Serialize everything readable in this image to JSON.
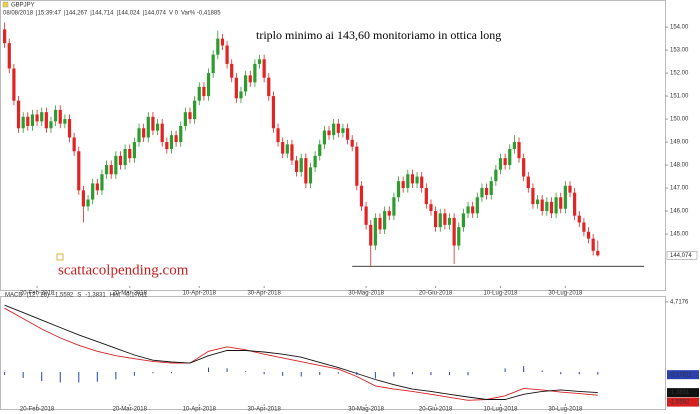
{
  "chart_data": [
    {
      "type": "candlestick",
      "symbol": "GBPJPY",
      "header_fields": [
        "08/08/2018",
        "|15:39:47",
        "|144,267",
        "|144,714",
        "|144,024",
        "|144,074",
        "V 0",
        "Var% -0,41885"
      ],
      "title": "triplo minimo ai 143,60 monitoriamo in ottica long",
      "watermark": "scattacolpending.com",
      "up_color": "#2e9b2e",
      "down_color": "#e02424",
      "open": [
        153.9,
        153.3,
        152.2,
        150.8,
        149.6,
        150.1,
        149.7,
        150.2,
        149.9,
        150.3,
        149.6,
        149.9,
        150.4,
        149.8,
        150.0,
        149.2,
        148.6,
        146.9,
        146.2,
        146.5,
        147.2,
        146.9,
        147.6,
        148.0,
        147.6,
        148.4,
        148.0,
        148.7,
        148.3,
        149.0,
        149.6,
        149.2,
        150.1,
        149.5,
        149.8,
        149.0,
        148.7,
        149.3,
        149.0,
        149.7,
        150.3,
        150.0,
        150.8,
        151.4,
        151.0,
        152.0,
        152.8,
        153.5,
        153.2,
        152.4,
        151.8,
        150.9,
        151.2,
        151.9,
        151.6,
        152.4,
        152.6,
        151.8,
        151.0,
        149.6,
        149.0,
        148.5,
        148.9,
        148.2,
        147.7,
        148.3,
        147.2,
        147.9,
        148.4,
        148.9,
        149.5,
        149.3,
        149.8,
        149.4,
        149.6,
        149.1,
        148.8,
        147.1,
        146.2,
        145.4,
        144.5,
        145.7,
        145.2,
        146.0,
        145.8,
        146.6,
        147.3,
        147.0,
        147.6,
        147.2,
        147.5,
        147.0,
        146.3,
        146.0,
        145.3,
        145.9,
        145.4,
        145.7,
        144.5,
        145.3,
        145.9,
        146.2,
        145.9,
        146.6,
        147.0,
        146.7,
        147.3,
        147.8,
        148.3,
        148.0,
        148.7,
        149.0,
        148.3,
        147.5,
        147.0,
        146.3,
        146.5,
        146.0,
        146.4,
        145.9,
        146.6,
        146.1,
        147.1,
        146.8,
        145.8,
        145.5,
        145.1,
        144.8,
        144.267
      ],
      "high": [
        154.2,
        153.5,
        152.4,
        151.0,
        150.3,
        150.3,
        150.4,
        150.4,
        150.5,
        150.5,
        150.1,
        150.6,
        150.6,
        150.2,
        150.2,
        149.4,
        148.8,
        147.1,
        146.7,
        147.4,
        147.4,
        147.8,
        148.2,
        148.2,
        148.6,
        148.6,
        148.9,
        148.9,
        149.2,
        149.8,
        149.8,
        150.3,
        150.3,
        150.0,
        150.0,
        149.2,
        149.5,
        149.5,
        149.9,
        150.5,
        150.5,
        151.0,
        151.6,
        151.6,
        152.2,
        153.0,
        153.85,
        153.7,
        153.4,
        152.6,
        152.0,
        151.4,
        152.1,
        152.1,
        152.6,
        152.8,
        152.8,
        152.0,
        151.2,
        149.8,
        149.2,
        149.1,
        149.1,
        148.4,
        148.5,
        148.5,
        148.1,
        148.6,
        149.1,
        149.7,
        149.7,
        150.0,
        150.0,
        149.8,
        149.8,
        149.3,
        149.0,
        147.3,
        146.4,
        145.6,
        145.9,
        145.9,
        146.2,
        146.2,
        146.8,
        147.5,
        147.5,
        147.8,
        147.8,
        147.7,
        147.7,
        147.2,
        146.5,
        146.2,
        146.1,
        146.1,
        145.9,
        145.9,
        145.5,
        146.1,
        146.4,
        146.4,
        146.8,
        147.2,
        147.2,
        147.5,
        148.0,
        148.5,
        148.5,
        148.9,
        149.3,
        149.2,
        148.5,
        147.7,
        147.2,
        146.7,
        146.7,
        146.6,
        146.6,
        146.8,
        146.8,
        147.3,
        147.3,
        147.0,
        146.0,
        145.7,
        145.3,
        145.0,
        144.714
      ],
      "low": [
        153.1,
        152.0,
        150.6,
        149.4,
        149.4,
        149.5,
        149.5,
        149.7,
        149.7,
        149.4,
        149.4,
        149.7,
        149.6,
        149.6,
        149.0,
        148.4,
        146.7,
        145.5,
        146.0,
        146.3,
        146.7,
        146.7,
        147.4,
        147.4,
        147.4,
        147.8,
        147.8,
        148.1,
        148.1,
        148.8,
        149.0,
        149.0,
        149.3,
        149.3,
        148.8,
        148.5,
        148.5,
        148.8,
        148.8,
        149.5,
        149.8,
        149.8,
        150.6,
        150.8,
        150.8,
        151.8,
        152.6,
        153.0,
        152.2,
        151.6,
        150.7,
        150.7,
        151.0,
        151.4,
        151.4,
        152.2,
        151.6,
        150.8,
        149.4,
        148.8,
        148.3,
        148.3,
        148.0,
        147.5,
        147.5,
        147.0,
        147.0,
        147.7,
        148.2,
        148.7,
        149.1,
        149.1,
        149.2,
        149.2,
        148.9,
        148.6,
        146.9,
        146.0,
        145.2,
        143.6,
        144.3,
        145.0,
        145.0,
        145.6,
        145.6,
        146.4,
        146.8,
        146.8,
        147.0,
        147.0,
        146.8,
        146.1,
        145.8,
        145.1,
        145.1,
        145.2,
        145.2,
        143.7,
        144.3,
        145.1,
        145.7,
        145.7,
        145.7,
        146.4,
        146.5,
        146.5,
        147.1,
        147.6,
        147.8,
        147.8,
        148.5,
        148.1,
        147.3,
        146.8,
        146.1,
        146.1,
        145.8,
        145.8,
        145.7,
        145.7,
        145.9,
        145.9,
        146.6,
        145.6,
        145.3,
        144.9,
        144.6,
        144.07,
        144.024
      ],
      "close": [
        153.3,
        152.2,
        150.8,
        149.6,
        150.1,
        149.7,
        150.2,
        149.9,
        150.3,
        149.6,
        149.9,
        150.4,
        149.8,
        150.0,
        149.2,
        148.6,
        146.9,
        146.2,
        146.5,
        147.2,
        146.9,
        147.6,
        148.0,
        147.6,
        148.4,
        148.0,
        148.7,
        148.3,
        149.0,
        149.6,
        149.2,
        150.1,
        149.5,
        149.8,
        149.0,
        148.7,
        149.3,
        149.0,
        149.7,
        150.3,
        150.0,
        150.8,
        151.4,
        151.0,
        152.0,
        152.8,
        153.5,
        153.2,
        152.4,
        151.8,
        150.9,
        151.2,
        151.9,
        151.6,
        152.4,
        152.6,
        151.8,
        151.0,
        149.6,
        149.0,
        148.5,
        148.9,
        148.2,
        147.7,
        148.3,
        147.2,
        147.9,
        148.4,
        148.9,
        149.5,
        149.3,
        149.8,
        149.4,
        149.6,
        149.1,
        148.8,
        147.1,
        146.2,
        145.4,
        144.5,
        145.7,
        145.2,
        146.0,
        145.8,
        146.6,
        147.3,
        147.0,
        147.6,
        147.2,
        147.5,
        147.0,
        146.3,
        146.0,
        145.3,
        145.9,
        145.4,
        145.7,
        144.5,
        145.3,
        145.9,
        146.2,
        145.9,
        146.6,
        147.0,
        146.7,
        147.3,
        147.8,
        148.3,
        148.0,
        148.7,
        149.0,
        148.3,
        147.5,
        147.0,
        146.3,
        146.5,
        146.0,
        146.4,
        145.9,
        146.6,
        146.1,
        147.1,
        146.8,
        145.8,
        145.5,
        145.1,
        144.8,
        144.27,
        144.074
      ],
      "xlim": [
        -1,
        142.5
      ],
      "xticks": [
        {
          "value": 7,
          "label": "20-Feb-2018"
        },
        {
          "value": 27,
          "label": "20-Mar-2018"
        },
        {
          "value": 42,
          "label": "10-Apr-2018"
        },
        {
          "value": 56,
          "label": "30-Apr-2018"
        },
        {
          "value": 78,
          "label": "30-Mag-2018"
        },
        {
          "value": 93,
          "label": "20-Giu-2018"
        },
        {
          "value": 107,
          "label": "10-Lug-2018"
        },
        {
          "value": 121,
          "label": "30-Lug-2018"
        }
      ],
      "ylim": [
        142.74,
        154.57
      ],
      "yticks": [
        {
          "value": 145,
          "label": "145.00"
        },
        {
          "value": 146,
          "label": "146.00"
        },
        {
          "value": 147,
          "label": "147.00"
        },
        {
          "value": 148,
          "label": "148.00"
        },
        {
          "value": 149,
          "label": "149.00"
        },
        {
          "value": 150,
          "label": "150.00"
        },
        {
          "value": 151,
          "label": "151.00"
        },
        {
          "value": 152,
          "label": "152.00"
        },
        {
          "value": 153,
          "label": "153.00"
        },
        {
          "value": 154,
          "label": "154.00"
        }
      ],
      "last_price": {
        "value": 144.074,
        "label": "144,074"
      },
      "hline": {
        "value": 143.6,
        "x_from": 75,
        "x_to": 138,
        "color": "#000000"
      }
    },
    {
      "type": "line",
      "indicator": "MACD",
      "params": "(12 , 26)",
      "x": [
        0,
        4,
        8,
        12,
        16,
        20,
        24,
        28,
        32,
        36,
        40,
        44,
        48,
        52,
        56,
        60,
        64,
        68,
        72,
        76,
        80,
        84,
        88,
        92,
        96,
        100,
        104,
        108,
        112,
        116,
        120,
        124,
        128
      ],
      "series": [
        {
          "name": "MACD",
          "color": "#d62020",
          "last_label": "-1,5592",
          "values": [
            4.3,
            3.6,
            2.9,
            2.3,
            1.8,
            1.4,
            1.1,
            0.9,
            0.72,
            0.6,
            0.6,
            1.4,
            1.7,
            1.5,
            1.2,
            0.95,
            0.7,
            0.45,
            0.2,
            -0.3,
            -0.93,
            -1.15,
            -1.3,
            -1.5,
            -1.7,
            -1.9,
            -1.85,
            -1.6,
            -1.1,
            -1.2,
            -1.35,
            -1.45,
            -1.5592
          ]
        },
        {
          "name": "S",
          "color": "#111111",
          "last_label": "-1,3831",
          "values": [
            4.5,
            4.0,
            3.5,
            3.0,
            2.5,
            2.05,
            1.6,
            1.15,
            0.8,
            0.68,
            0.6,
            1.1,
            1.45,
            1.45,
            1.35,
            1.2,
            1.0,
            0.65,
            0.3,
            -0.1,
            -0.5,
            -0.85,
            -1.15,
            -1.3,
            -1.5,
            -1.68,
            -1.85,
            -1.85,
            -1.5,
            -1.3,
            -1.2,
            -1.3,
            -1.3831
          ]
        },
        {
          "name": "Hist",
          "color": "#2a3fb0",
          "type": "bar",
          "last_label": "-0,17611",
          "values": [
            -0.2,
            -0.4,
            -0.6,
            -0.7,
            -0.7,
            -0.65,
            -0.5,
            -0.25,
            -0.08,
            -0.08,
            0,
            0.3,
            0.25,
            0.05,
            -0.15,
            -0.25,
            -0.3,
            -0.2,
            -0.1,
            -0.2,
            -0.43,
            -0.3,
            -0.15,
            -0.2,
            -0.2,
            -0.22,
            0,
            0.25,
            0.4,
            0.1,
            -0.15,
            -0.15,
            -0.17611
          ]
        }
      ],
      "xlim": [
        -1,
        142.5
      ],
      "xticks": [
        {
          "value": 7,
          "label": "20-Feb-2018"
        },
        {
          "value": 27,
          "label": "20-Mar-2018"
        },
        {
          "value": 42,
          "label": "10-Apr-2018"
        },
        {
          "value": 56,
          "label": "30-Apr-2018"
        },
        {
          "value": 78,
          "label": "30-Mag-2018"
        },
        {
          "value": 93,
          "label": "20-Giu-2018"
        },
        {
          "value": 107,
          "label": "10-Lug-2018"
        },
        {
          "value": 121,
          "label": "30-Lug-2018"
        }
      ],
      "ylim": [
        -2.15,
        4.85
      ],
      "yticks": [
        {
          "value": 4.7176,
          "label": "4,7176"
        }
      ]
    }
  ]
}
